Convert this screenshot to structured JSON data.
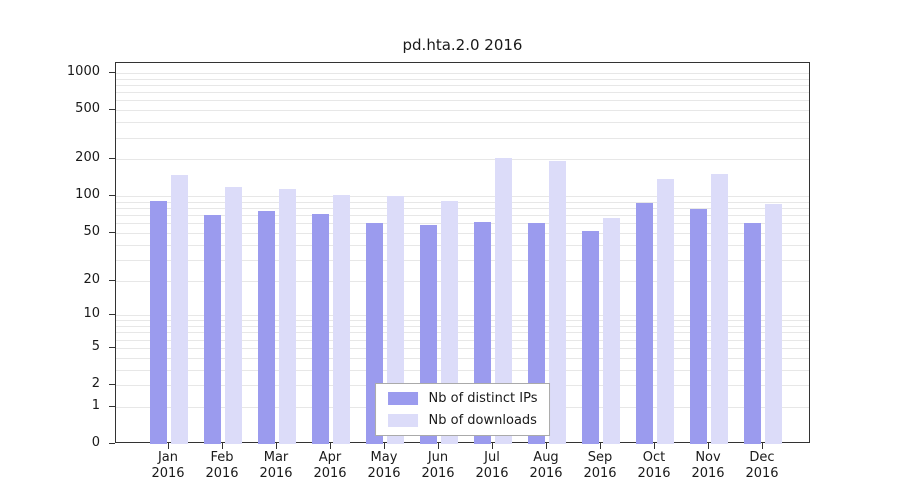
{
  "title": "pd.hta.2.0 2016",
  "chart_data": {
    "type": "bar",
    "title": "pd.hta.2.0 2016",
    "categories": [
      "Jan",
      "Feb",
      "Mar",
      "Apr",
      "May",
      "Jun",
      "Jul",
      "Aug",
      "Sep",
      "Oct",
      "Nov",
      "Dec"
    ],
    "year_label": "2016",
    "series": [
      {
        "name": "Nb of distinct IPs",
        "color": "#9b9bee",
        "values": [
          92,
          70,
          75,
          72,
          60,
          58,
          62,
          60,
          52,
          88,
          78,
          60
        ]
      },
      {
        "name": "Nb of downloads",
        "color": "#dcdcf9",
        "values": [
          150,
          118,
          115,
          103,
          100,
          92,
          205,
          195,
          66,
          138,
          152,
          86
        ]
      }
    ],
    "yscale": "log1p",
    "ylim": [
      0,
      1000
    ],
    "ytick_values": [
      0,
      1,
      2,
      5,
      10,
      20,
      50,
      100,
      200,
      500,
      1000
    ],
    "minor_grid_values": [
      1,
      2,
      3,
      4,
      5,
      6,
      7,
      8,
      9,
      10,
      20,
      30,
      40,
      50,
      60,
      70,
      80,
      90,
      100,
      200,
      300,
      400,
      500,
      600,
      700,
      800,
      900,
      1000
    ],
    "grid": "horizontal",
    "legend_position": "bottom-center",
    "colors": {
      "grid": "#e7e7e7",
      "axis": "#333333",
      "text": "#1a1a1a",
      "background": "#ffffff",
      "legend_border": "#aaaaaa"
    }
  }
}
